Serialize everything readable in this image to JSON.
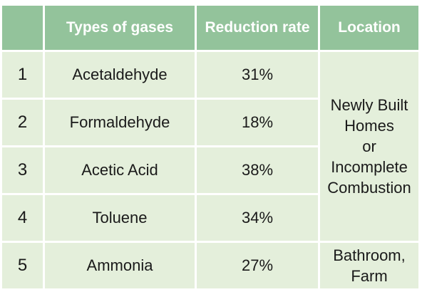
{
  "table": {
    "header": [
      "",
      "Types of gases",
      "Reduction rate",
      "Location"
    ],
    "rows": [
      [
        "1",
        "Acetaldehyde",
        "31%"
      ],
      [
        "2",
        "Formaldehyde",
        "18%"
      ],
      [
        "3",
        "Acetic Acid",
        "38%"
      ],
      [
        "4",
        "Toluene",
        "34%"
      ],
      [
        "5",
        "Ammonia",
        "27%"
      ]
    ],
    "locations": [
      {
        "lines": [
          "Newly Built",
          "Homes",
          "or",
          "Incomplete",
          "Combustion"
        ]
      },
      {
        "lines": [
          "Bathroom,",
          "Farm"
        ]
      }
    ]
  }
}
